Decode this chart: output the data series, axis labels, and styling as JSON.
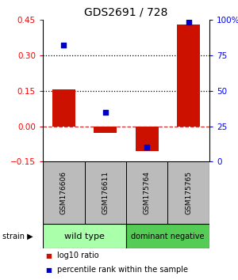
{
  "title": "GDS2691 / 728",
  "samples": [
    "GSM176606",
    "GSM176611",
    "GSM175764",
    "GSM175765"
  ],
  "log10_ratio": [
    0.155,
    -0.028,
    -0.105,
    0.43
  ],
  "percentile_rank": [
    82,
    35,
    10,
    98
  ],
  "wild_type_color": "#aaffaa",
  "dominant_negative_color": "#55cc55",
  "sample_bg_color": "#bbbbbb",
  "bar_color_red": "#cc1100",
  "dot_color_blue": "#0000cc",
  "ylim_left": [
    -0.15,
    0.45
  ],
  "ylim_right": [
    0,
    100
  ],
  "yticks_left": [
    -0.15,
    0,
    0.15,
    0.3,
    0.45
  ],
  "yticks_right": [
    0,
    25,
    50,
    75,
    100
  ],
  "hlines": [
    0.15,
    0.3
  ],
  "zero_line": 0,
  "bar_width": 0.55
}
